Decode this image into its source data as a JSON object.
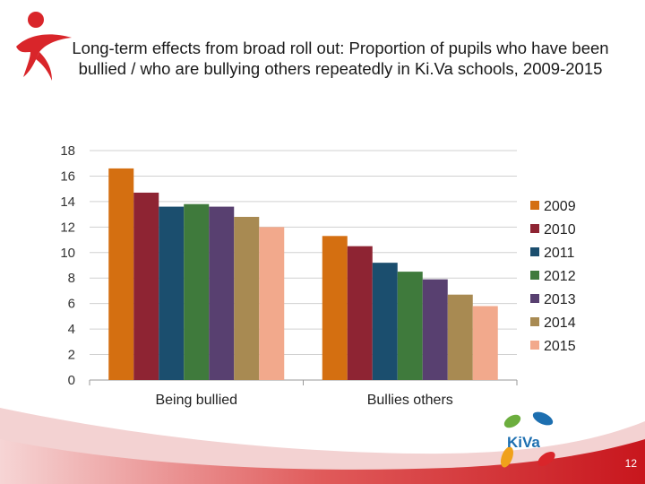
{
  "slide": {
    "title": "Long-term effects from broad roll out: Proportion of pupils who have been bullied / who are bullying others repeatedly in Ki.Va schools, 2009-2015",
    "page_number": "12",
    "logo_text": "KiVa"
  },
  "colors": {
    "accent_red": "#d9252a",
    "series": [
      "#d46f11",
      "#8e2433",
      "#1b4e6e",
      "#3f7a3c",
      "#584070",
      "#a88a52",
      "#f2a98c"
    ]
  },
  "chart_data": {
    "type": "bar",
    "categories": [
      "Being bullied",
      "Bullies others"
    ],
    "series": [
      {
        "name": "2009",
        "values": [
          16.6,
          11.3
        ]
      },
      {
        "name": "2010",
        "values": [
          14.7,
          10.5
        ]
      },
      {
        "name": "2011",
        "values": [
          13.6,
          9.2
        ]
      },
      {
        "name": "2012",
        "values": [
          13.8,
          8.5
        ]
      },
      {
        "name": "2013",
        "values": [
          13.6,
          7.9
        ]
      },
      {
        "name": "2014",
        "values": [
          12.8,
          6.7
        ]
      },
      {
        "name": "2015",
        "values": [
          12.0,
          5.8
        ]
      }
    ],
    "ylim": [
      0,
      18
    ],
    "yticks": [
      0,
      2,
      4,
      6,
      8,
      10,
      12,
      14,
      16,
      18
    ],
    "grid": true,
    "legend": "right",
    "title": "",
    "xlabel": "",
    "ylabel": ""
  }
}
